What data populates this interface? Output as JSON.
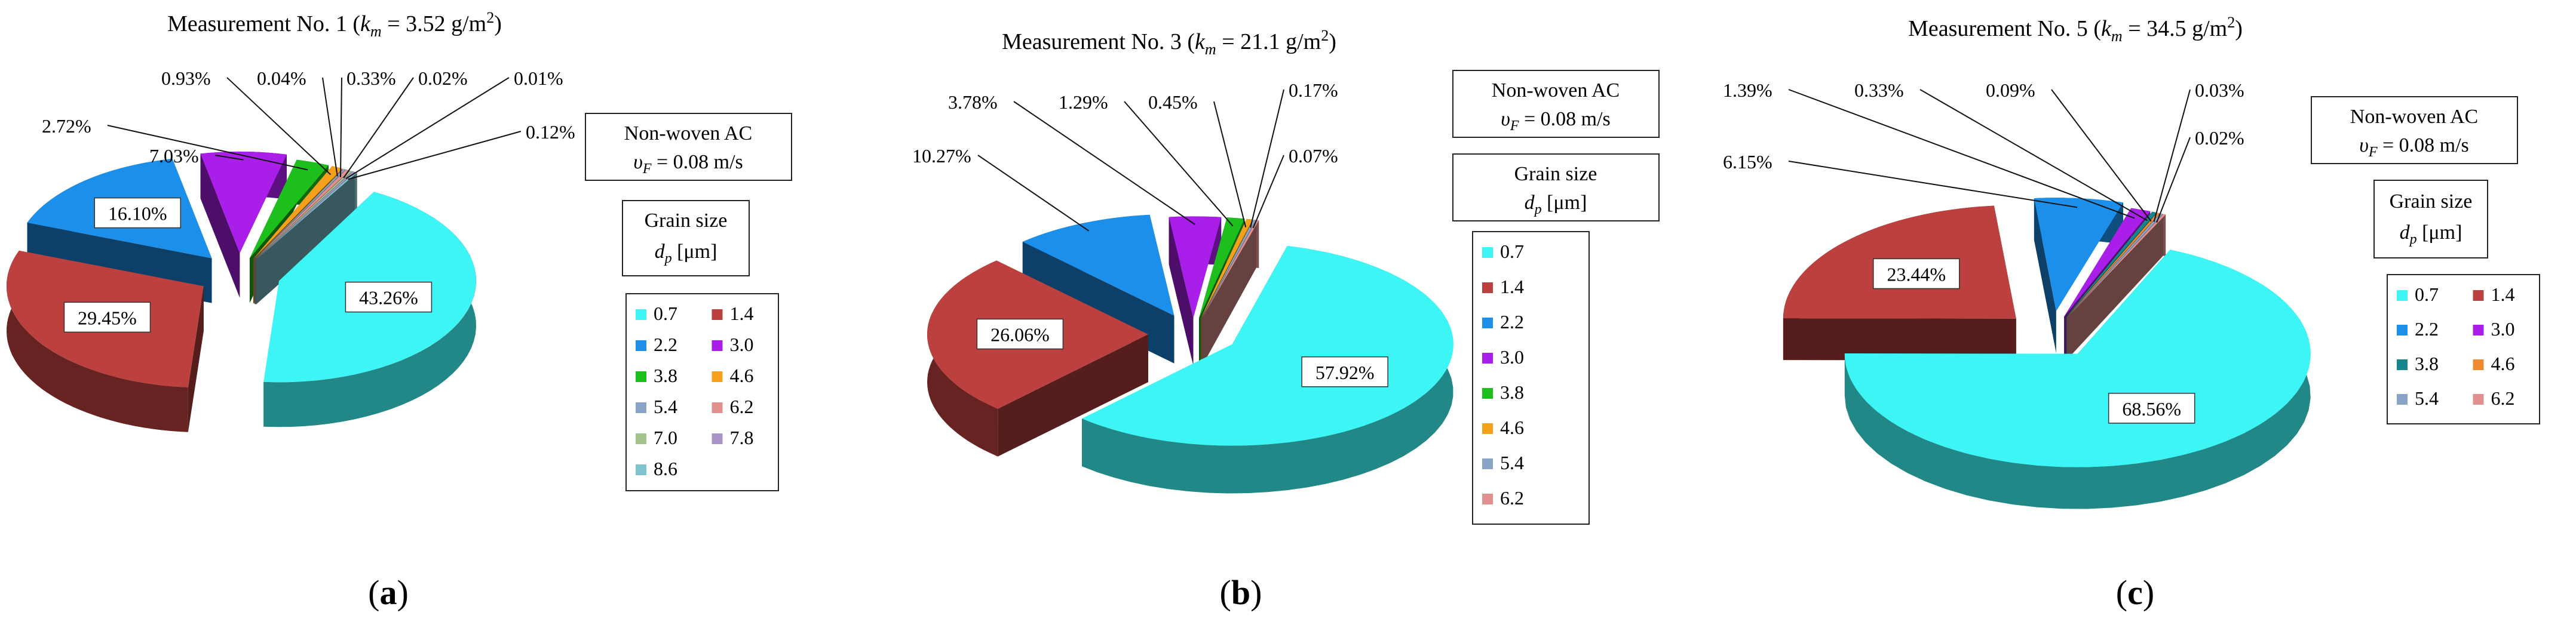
{
  "chart_data": [
    {
      "type": "pie",
      "title_prefix": "Measurement No. 1 (",
      "title_sym": "k",
      "title_sub": "m",
      "title_mid": " = 3.52 g/m",
      "title_sup": "2",
      "title_suffix": ")",
      "flow_line1": "Non-woven AC",
      "flow_sym": "υ",
      "flow_sub": "F",
      "flow_value": " = 0.08 m/s",
      "legend_title": "Grain size",
      "legend_sym": "d",
      "legend_sub": "p",
      "legend_unit": " [μm]",
      "panel_label": "a",
      "legend_columns": 2,
      "slices": [
        {
          "grain": "0.7",
          "percent": 43.26,
          "label": "43.26%",
          "color": "#3df5f5"
        },
        {
          "grain": "1.4",
          "percent": 29.45,
          "label": "29.45%",
          "color": "#bc403e"
        },
        {
          "grain": "2.2",
          "percent": 16.1,
          "label": "16.10%",
          "color": "#1b8fe9"
        },
        {
          "grain": "3.0",
          "percent": 7.03,
          "label": "7.03%",
          "color": "#a91ee8"
        },
        {
          "grain": "3.8",
          "percent": 2.72,
          "label": "2.72%",
          "color": "#1dbf1d"
        },
        {
          "grain": "4.6",
          "percent": 0.93,
          "label": "0.93%",
          "color": "#f5a01b"
        },
        {
          "grain": "5.4",
          "percent": 0.04,
          "label": "0.04%",
          "color": "#8aa4c8"
        },
        {
          "grain": "6.2",
          "percent": 0.33,
          "label": "0.33%",
          "color": "#e0908e"
        },
        {
          "grain": "7.0",
          "percent": 0.02,
          "label": "0.02%",
          "color": "#a3c48c"
        },
        {
          "grain": "7.8",
          "percent": 0.01,
          "label": "0.01%",
          "color": "#a895c6"
        },
        {
          "grain": "8.6",
          "percent": 0.12,
          "label": "0.12%",
          "color": "#7fc3cf"
        }
      ]
    },
    {
      "type": "pie",
      "title_prefix": "Measurement No. 3 (",
      "title_sym": "k",
      "title_sub": "m",
      "title_mid": " = 21.1 g/m",
      "title_sup": "2",
      "title_suffix": ")",
      "flow_line1": "Non-woven AC",
      "flow_sym": "υ",
      "flow_sub": "F",
      "flow_value": " = 0.08 m/s",
      "legend_title": "Grain size",
      "legend_sym": "d",
      "legend_sub": "p",
      "legend_unit": " [μm]",
      "panel_label": "b",
      "legend_columns": 1,
      "slices": [
        {
          "grain": "0.7",
          "percent": 57.92,
          "label": "57.92%",
          "color": "#3df5f5"
        },
        {
          "grain": "1.4",
          "percent": 26.06,
          "label": "26.06%",
          "color": "#bc403e"
        },
        {
          "grain": "2.2",
          "percent": 10.27,
          "label": "10.27%",
          "color": "#1b8fe9"
        },
        {
          "grain": "3.0",
          "percent": 3.78,
          "label": "3.78%",
          "color": "#a91ee8"
        },
        {
          "grain": "3.8",
          "percent": 1.29,
          "label": "1.29%",
          "color": "#1dbf1d"
        },
        {
          "grain": "4.6",
          "percent": 0.45,
          "label": "0.45%",
          "color": "#f5a01b"
        },
        {
          "grain": "5.4",
          "percent": 0.17,
          "label": "0.17%",
          "color": "#8aa4c8"
        },
        {
          "grain": "6.2",
          "percent": 0.07,
          "label": "0.07%",
          "color": "#e0908e"
        }
      ]
    },
    {
      "type": "pie",
      "title_prefix": "Measurement No. 5 (",
      "title_sym": "k",
      "title_sub": "m",
      "title_mid": " =  34.5 g/m",
      "title_sup": "2",
      "title_suffix": ")",
      "flow_line1": "Non-woven AC",
      "flow_sym": "υ",
      "flow_sub": "F",
      "flow_value": " = 0.08 m/s",
      "legend_title": "Grain size",
      "legend_sym": "d",
      "legend_sub": "p",
      "legend_unit": " [μm]",
      "panel_label": "c",
      "legend_columns": 2,
      "slices": [
        {
          "grain": "0.7",
          "percent": 68.56,
          "label": "68.56%",
          "color": "#3df5f5"
        },
        {
          "grain": "1.4",
          "percent": 23.44,
          "label": "23.44%",
          "color": "#bc403e"
        },
        {
          "grain": "2.2",
          "percent": 6.15,
          "label": "6.15%",
          "color": "#1b8fe9"
        },
        {
          "grain": "3.0",
          "percent": 1.39,
          "label": "1.39%",
          "color": "#a91ee8"
        },
        {
          "grain": "3.8",
          "percent": 0.33,
          "label": "0.33%",
          "color": "#17868c"
        },
        {
          "grain": "4.6",
          "percent": 0.09,
          "label": "0.09%",
          "color": "#f08a30"
        },
        {
          "grain": "5.4",
          "percent": 0.03,
          "label": "0.03%",
          "color": "#8aa4c8"
        },
        {
          "grain": "6.2",
          "percent": 0.02,
          "label": "0.02%",
          "color": "#e0908e"
        }
      ]
    }
  ]
}
